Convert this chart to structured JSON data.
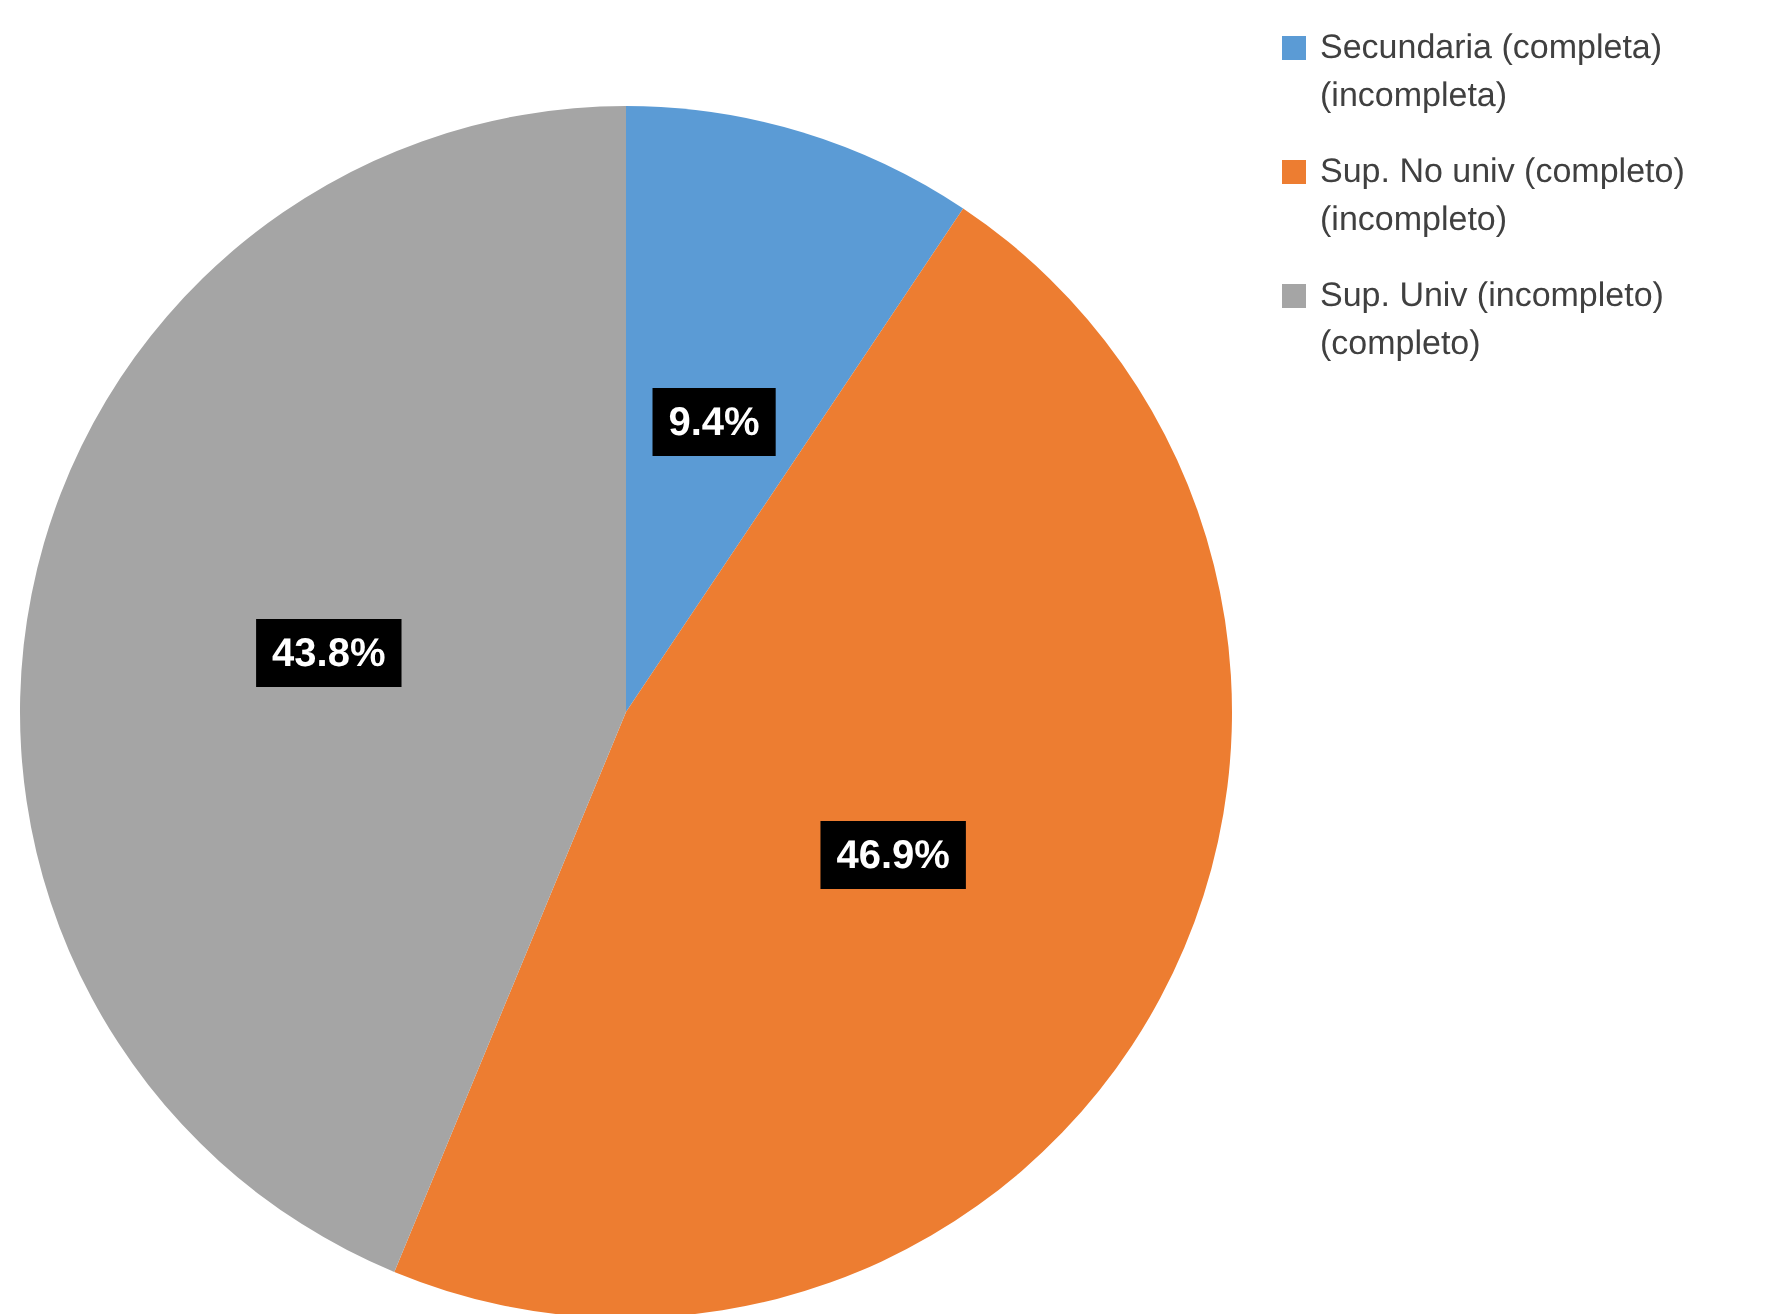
{
  "chart_data": {
    "type": "pie",
    "categories": [
      "Secundaria (completa)(incompleta)",
      "Sup. No univ (completo)(incompleto)",
      "Sup. Univ (incompleto) (completo)"
    ],
    "values": [
      9.4,
      46.9,
      43.8
    ],
    "colors": [
      "#5b9bd5",
      "#ed7d31",
      "#a5a5a5"
    ],
    "value_labels": [
      "9.4%",
      "46.9%",
      "43.8%"
    ],
    "legend": "top right"
  }
}
